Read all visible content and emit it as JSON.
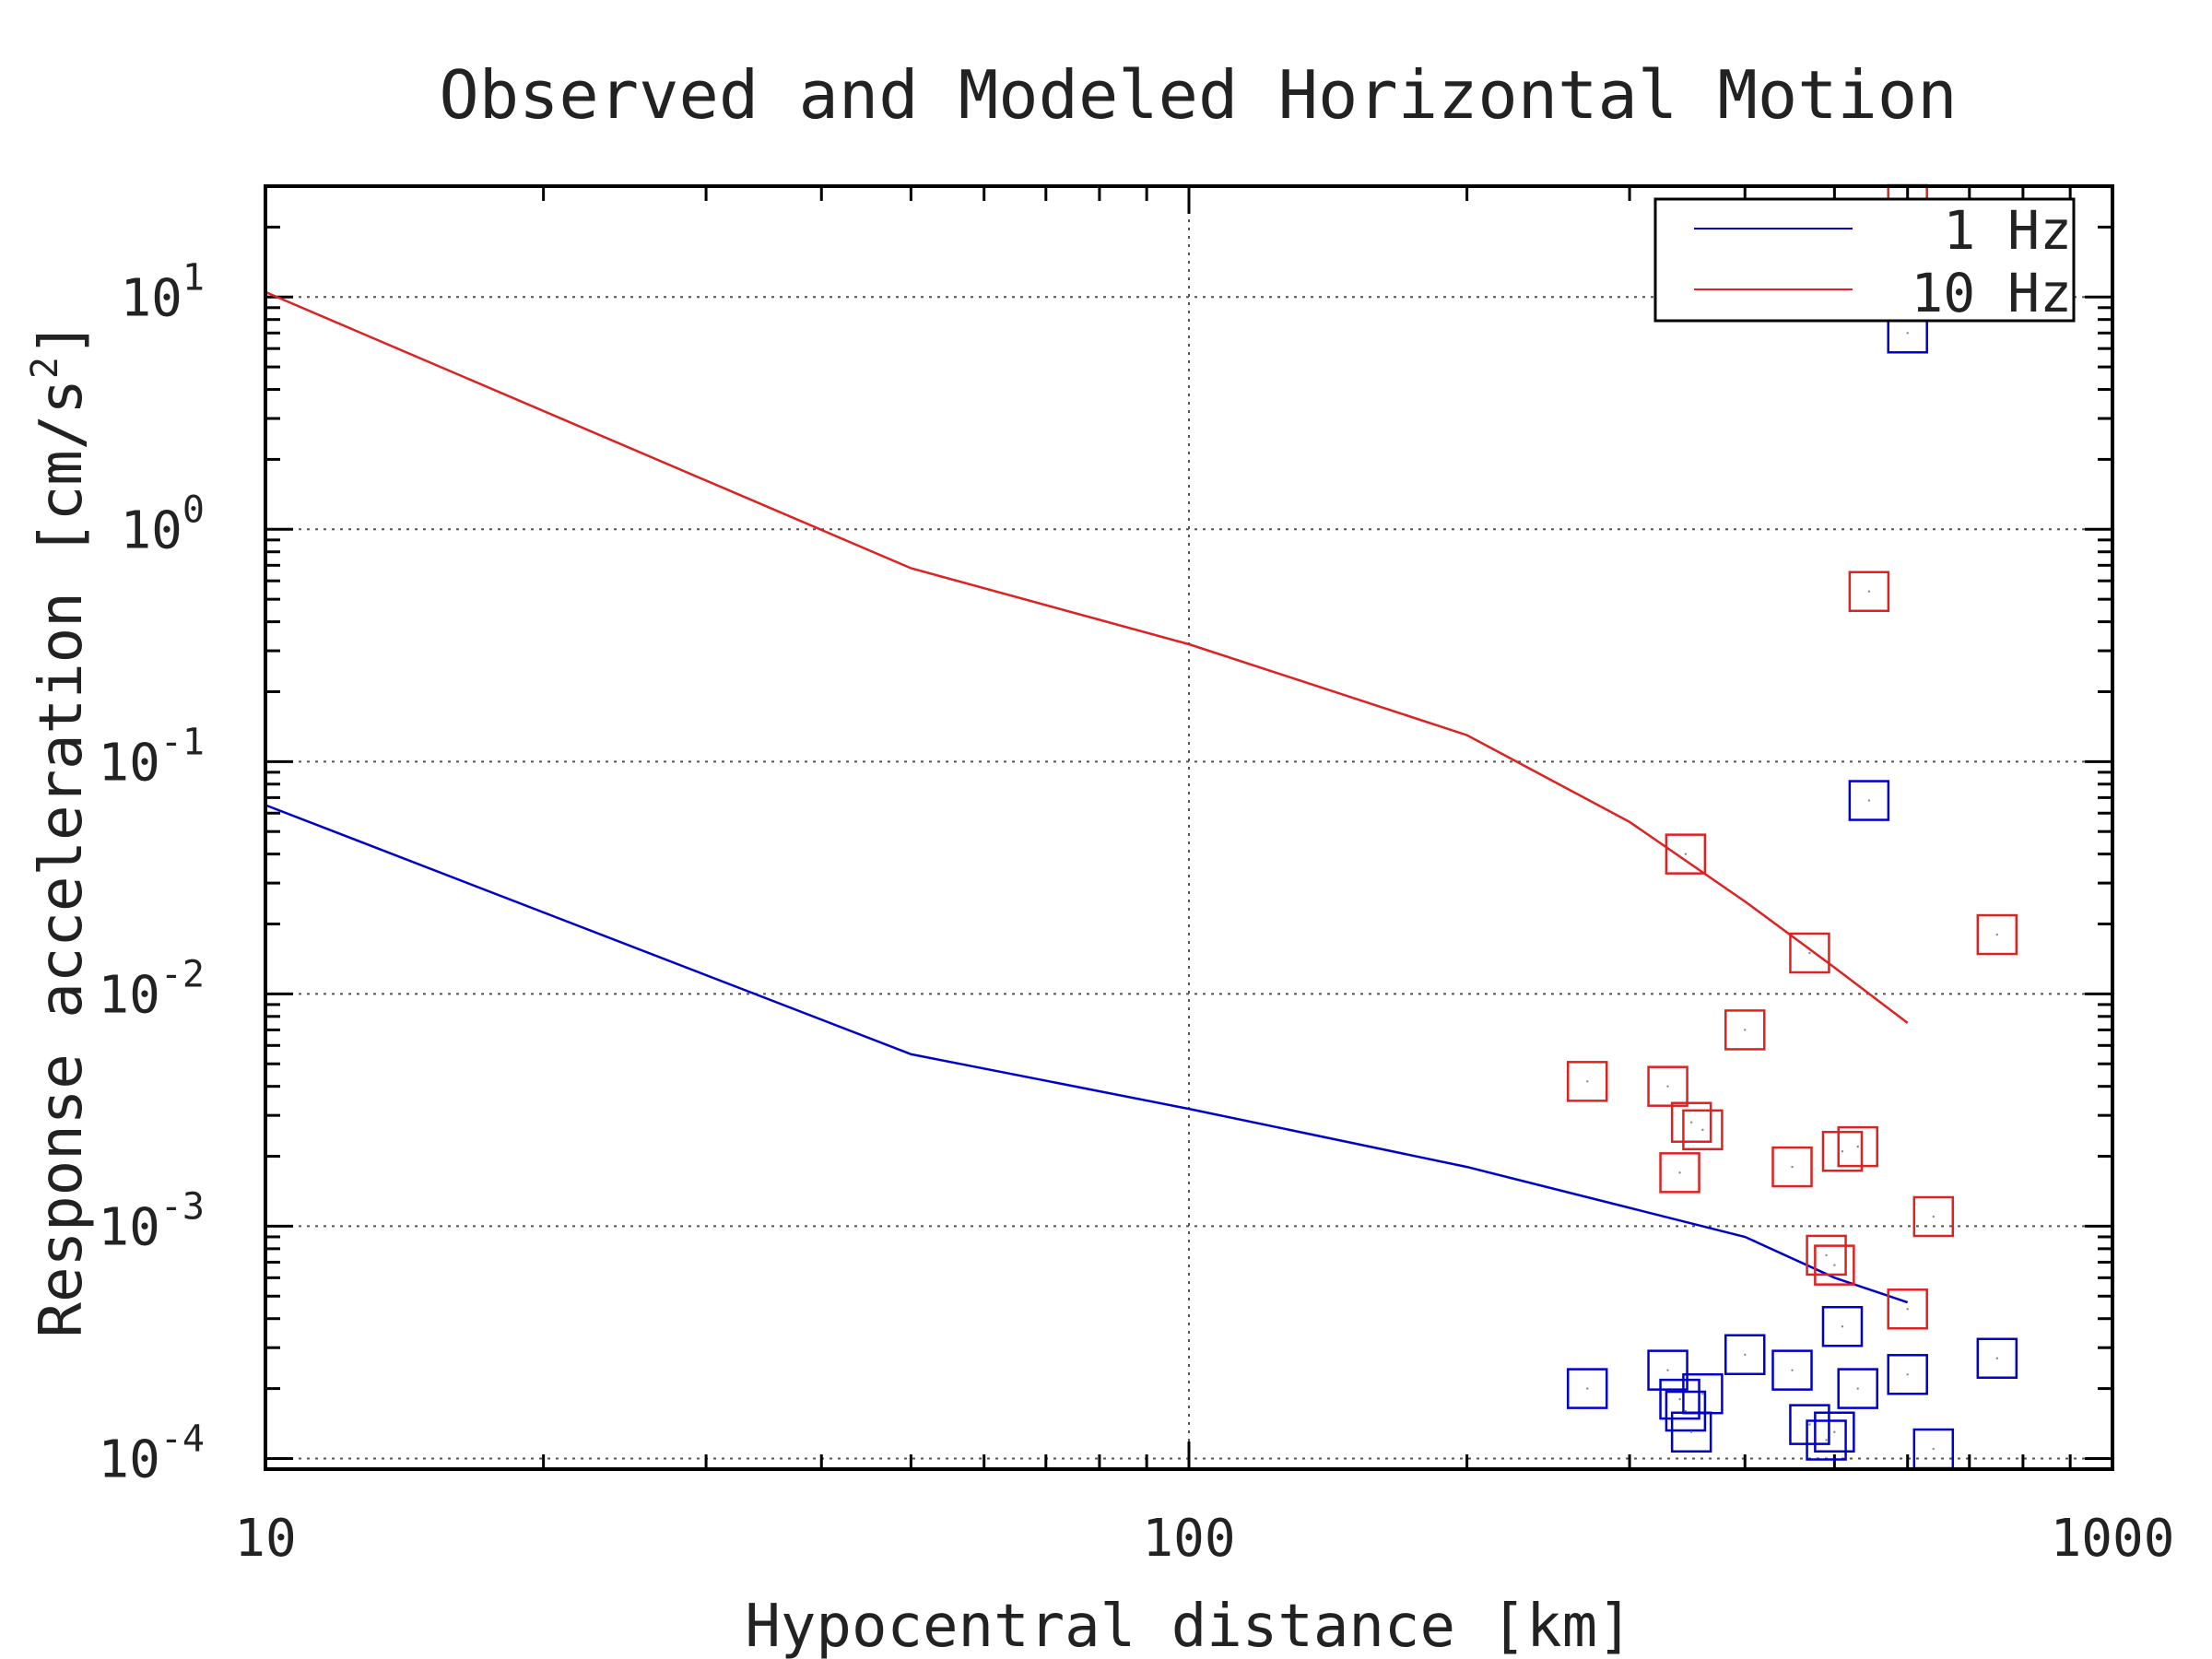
{
  "chart_data": {
    "type": "line",
    "title": "Observed and Modeled Horizontal Motion",
    "xlabel": "Hypocentral distance [km]",
    "ylabel": "Response acceleration [cm/s",
    "ylabel_sup": "2",
    "ylabel_tail": "]",
    "x_scale": "log",
    "y_scale": "log",
    "xlim": [
      10,
      1000
    ],
    "ylim": [
      9e-05,
      30
    ],
    "grid": true,
    "legend_position": "top-right",
    "x_ticks": [
      "10",
      "100",
      "1000"
    ],
    "y_ticks": [
      {
        "base": "10",
        "exp": "1"
      },
      {
        "base": "10",
        "exp": "0"
      },
      {
        "base": "10",
        "exp": "-1"
      },
      {
        "base": "10",
        "exp": "-2"
      },
      {
        "base": "10",
        "exp": "-3"
      },
      {
        "base": "10",
        "exp": "-4"
      }
    ],
    "series": [
      {
        "name": "1 Hz",
        "color": "#0000cc",
        "model_x": [
          10,
          50,
          100,
          200,
          300,
          400,
          500,
          600
        ],
        "model_y": [
          0.065,
          0.0055,
          0.0032,
          0.0018,
          0.0012,
          0.0009,
          0.0006,
          0.00047
        ],
        "observed_x": [
          270,
          330,
          340,
          345,
          350,
          360,
          400,
          450,
          470,
          490,
          500,
          510,
          530,
          600,
          640,
          750
        ],
        "observed_y": [
          0.0002,
          0.00024,
          0.00018,
          0.00016,
          0.00013,
          0.00019,
          0.00028,
          0.00024,
          0.00014,
          0.00012,
          0.00013,
          0.00037,
          0.0002,
          0.00023,
          0.00011,
          0.00027
        ]
      },
      {
        "name": "10 Hz",
        "color": "#dd2222",
        "model_x": [
          10,
          50,
          100,
          200,
          300,
          400,
          500,
          600
        ],
        "model_y": [
          10.5,
          0.68,
          0.32,
          0.13,
          0.055,
          0.025,
          0.013,
          0.0075
        ],
        "observed_x": [
          270,
          330,
          340,
          345,
          350,
          360,
          400,
          450,
          470,
          490,
          500,
          510,
          530,
          545,
          600,
          640,
          750
        ],
        "observed_y": [
          0.0042,
          0.004,
          0.0017,
          0.04,
          0.0028,
          0.0026,
          0.007,
          0.0018,
          0.015,
          0.00075,
          0.00068,
          0.0021,
          0.0022,
          0.54,
          0.00044,
          0.0011,
          0.018
        ]
      }
    ],
    "extra_points": [
      {
        "series": "10 Hz",
        "x": 600,
        "y": 25
      },
      {
        "series": "1 Hz",
        "x": 600,
        "y": 7
      },
      {
        "series": "1 Hz",
        "x": 545,
        "y": 0.068
      }
    ]
  }
}
